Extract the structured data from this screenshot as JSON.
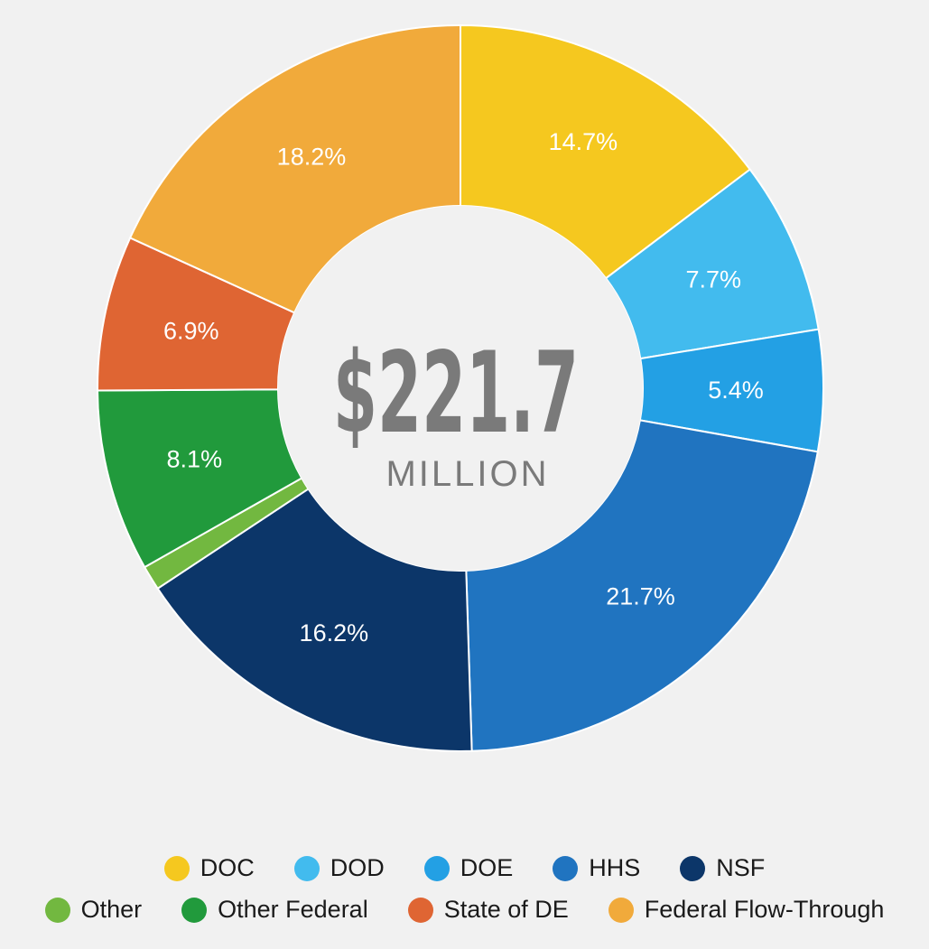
{
  "chart_data": {
    "type": "pie",
    "center": {
      "amount": "$221.7",
      "unit": "MILLION"
    },
    "series": [
      {
        "name": "DOC",
        "value": 14.7,
        "label": "14.7%",
        "color": "#f5c81f"
      },
      {
        "name": "DOD",
        "value": 7.7,
        "label": "7.7%",
        "color": "#42bbee"
      },
      {
        "name": "DOE",
        "value": 5.4,
        "label": "5.4%",
        "color": "#23a0e4"
      },
      {
        "name": "HHS",
        "value": 21.7,
        "label": "21.7%",
        "color": "#2074c0"
      },
      {
        "name": "NSF",
        "value": 16.2,
        "label": "16.2%",
        "color": "#0c3669"
      },
      {
        "name": "Other",
        "value": 1.1,
        "label": "",
        "color": "#72b840"
      },
      {
        "name": "Other Federal",
        "value": 8.1,
        "label": "8.1%",
        "color": "#219a3c"
      },
      {
        "name": "State of DE",
        "value": 6.9,
        "label": "6.9%",
        "color": "#df6533"
      },
      {
        "name": "Federal Flow-Through",
        "value": 18.2,
        "label": "18.2%",
        "color": "#f1aa3b"
      }
    ],
    "legend": {
      "position": "bottom",
      "rows": [
        [
          "DOC",
          "DOD",
          "DOE",
          "HHS",
          "NSF"
        ],
        [
          "Other",
          "Other Federal",
          "State of DE",
          "Federal Flow-Through"
        ]
      ]
    }
  }
}
